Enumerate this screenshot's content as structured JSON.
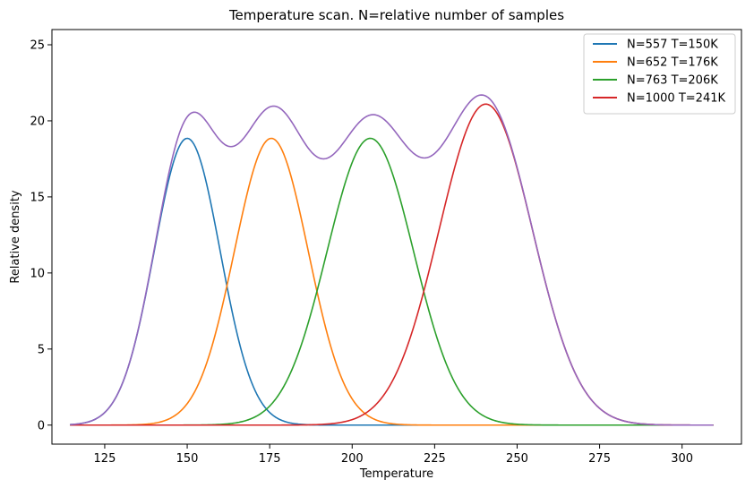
{
  "chart_data": {
    "type": "line",
    "title": "Temperature scan. N=relative number of samples",
    "xlabel": "Temperature",
    "ylabel": "Relative density",
    "xlim": [
      109,
      318
    ],
    "ylim": [
      -1.25,
      26
    ],
    "xticks": [
      125,
      150,
      175,
      200,
      225,
      250,
      275,
      300
    ],
    "yticks": [
      0,
      5,
      10,
      15,
      20,
      25
    ],
    "grid": false,
    "legend_position": "top-right",
    "x_range": [
      114.5,
      309.5
    ],
    "series": [
      {
        "name": "N=557 T=150K",
        "color": "#1f77b4",
        "peak_x": 150,
        "peak_y": 18.85,
        "sigma": 10
      },
      {
        "name": "N=652 T=176K",
        "color": "#ff7f0e",
        "peak_x": 175.5,
        "peak_y": 18.85,
        "sigma": 11.2
      },
      {
        "name": "N=763 T=206K",
        "color": "#2ca02c",
        "peak_x": 205.5,
        "peak_y": 18.85,
        "sigma": 13.1
      },
      {
        "name": "N=1000 T=241K",
        "color": "#d62728",
        "peak_x": 240.5,
        "peak_y": 21.1,
        "sigma": 14.2
      },
      {
        "name": "",
        "color": "#9467bd",
        "sum_of": [
          0,
          1,
          2,
          3
        ]
      }
    ]
  }
}
